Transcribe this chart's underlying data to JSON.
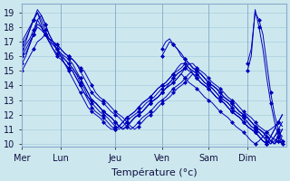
{
  "background_color": "#cce8ee",
  "grid_color": "#aaccdd",
  "line_color": "#0000bb",
  "marker": "D",
  "marker_size": 2.5,
  "xlabel": "Température (°c)",
  "ylim": [
    9.8,
    19.6
  ],
  "yticks": [
    10,
    11,
    12,
    13,
    14,
    15,
    16,
    17,
    18,
    19
  ],
  "day_labels": [
    "Mer",
    "Lun",
    "Jeu",
    "Ven",
    "Sam",
    "Dim"
  ],
  "day_positions": [
    0,
    20,
    48,
    72,
    96,
    116
  ],
  "xlim": [
    0,
    136
  ],
  "series": [
    {
      "x": [
        0,
        2,
        4,
        6,
        8,
        10,
        12,
        14,
        16,
        18,
        20,
        22,
        24,
        26,
        28,
        30,
        32,
        34,
        36,
        38,
        40,
        42,
        44,
        46,
        48,
        50,
        52,
        54,
        56,
        58,
        60,
        62,
        64,
        66,
        68,
        70,
        72,
        74,
        76,
        78,
        80,
        82,
        84,
        86,
        88,
        90,
        92,
        94,
        96,
        98,
        100,
        102,
        104,
        106,
        108,
        110,
        112,
        114,
        116,
        118,
        120,
        122,
        124,
        126,
        128,
        130,
        132,
        134
      ],
      "y": [
        16.0,
        16.2,
        16.8,
        17.5,
        18.5,
        18.8,
        18.2,
        17.5,
        17.0,
        16.5,
        16.0,
        15.5,
        15.2,
        15.0,
        14.5,
        14.0,
        13.5,
        13.2,
        13.0,
        12.8,
        12.5,
        12.2,
        12.0,
        11.8,
        11.5,
        11.2,
        11.0,
        11.2,
        11.5,
        11.8,
        12.0,
        12.2,
        12.5,
        12.8,
        13.0,
        13.2,
        13.5,
        13.8,
        14.2,
        14.5,
        14.8,
        15.0,
        15.2,
        15.5,
        15.5,
        15.2,
        15.0,
        14.8,
        14.5,
        14.2,
        14.0,
        13.8,
        13.5,
        13.2,
        13.0,
        12.8,
        12.5,
        12.2,
        12.0,
        11.8,
        11.5,
        11.2,
        11.0,
        10.8,
        10.5,
        10.3,
        10.2,
        10.0
      ]
    },
    {
      "x": [
        0,
        2,
        4,
        6,
        8,
        10,
        12,
        14,
        16,
        18,
        20,
        22,
        24,
        26,
        28,
        30,
        32,
        34,
        36,
        38,
        40,
        42,
        44,
        46,
        48,
        50,
        52,
        54,
        56,
        58,
        60,
        62,
        64,
        66,
        68,
        70,
        72,
        74,
        76,
        78,
        80,
        82,
        84,
        86,
        88,
        90,
        92,
        94,
        96,
        98,
        100,
        102,
        104,
        106,
        108,
        110,
        112,
        114,
        116,
        118,
        120,
        122,
        124,
        126,
        128,
        130,
        132,
        134
      ],
      "y": [
        16.5,
        17.0,
        17.8,
        18.5,
        19.0,
        18.5,
        17.8,
        17.2,
        16.8,
        16.5,
        16.0,
        15.5,
        15.0,
        14.5,
        14.0,
        13.5,
        13.0,
        12.5,
        12.2,
        12.0,
        11.8,
        11.5,
        11.2,
        11.0,
        11.0,
        11.2,
        11.5,
        11.8,
        12.0,
        12.2,
        12.5,
        12.8,
        13.0,
        13.2,
        13.5,
        13.8,
        14.0,
        14.2,
        14.5,
        14.8,
        15.0,
        15.2,
        15.5,
        15.2,
        15.0,
        14.8,
        14.5,
        14.2,
        14.0,
        13.8,
        13.5,
        13.2,
        13.0,
        12.8,
        12.5,
        12.2,
        12.0,
        11.8,
        11.5,
        11.2,
        11.0,
        10.8,
        10.5,
        10.2,
        10.0,
        10.2,
        10.5,
        10.2
      ]
    },
    {
      "x": [
        0,
        2,
        4,
        6,
        8,
        10,
        12,
        14,
        16,
        18,
        20,
        22,
        24,
        26,
        28,
        30,
        32,
        34,
        36,
        38,
        40,
        42,
        44,
        46,
        48,
        50,
        52,
        54,
        56,
        58,
        60,
        62,
        64,
        66,
        68,
        70,
        72,
        74,
        76,
        78,
        80,
        82,
        84,
        86,
        88,
        90,
        92,
        94,
        96,
        98,
        100,
        102,
        104,
        106,
        108,
        110,
        112,
        114,
        116,
        118,
        120,
        122,
        124,
        126,
        128,
        130,
        132,
        134
      ],
      "y": [
        17.0,
        17.5,
        18.0,
        18.5,
        19.0,
        18.2,
        17.5,
        17.0,
        16.5,
        16.0,
        15.8,
        15.5,
        15.2,
        15.0,
        14.5,
        14.0,
        13.5,
        13.0,
        12.5,
        12.2,
        12.0,
        11.8,
        11.5,
        11.2,
        11.0,
        11.2,
        11.5,
        11.8,
        12.0,
        12.2,
        12.5,
        12.8,
        13.0,
        13.2,
        13.5,
        13.8,
        14.0,
        14.2,
        14.5,
        14.8,
        15.2,
        15.5,
        15.5,
        15.2,
        14.8,
        14.5,
        14.2,
        14.0,
        13.8,
        13.5,
        13.2,
        13.0,
        12.8,
        12.5,
        12.2,
        12.0,
        11.8,
        11.5,
        11.2,
        11.0,
        10.8,
        10.5,
        10.2,
        10.0,
        10.2,
        10.5,
        10.8,
        10.5
      ]
    },
    {
      "x": [
        0,
        2,
        4,
        6,
        8,
        10,
        12,
        14,
        16,
        18,
        20,
        22,
        24,
        26,
        28,
        30,
        32,
        34,
        36,
        38,
        40,
        42,
        44,
        46,
        48,
        50,
        52,
        54,
        56,
        58,
        60,
        62,
        64,
        66,
        68,
        70,
        72,
        74,
        76,
        78,
        80,
        82,
        84,
        86,
        88,
        90,
        92,
        94,
        96,
        98,
        100,
        102,
        104,
        106,
        108,
        110,
        112,
        114,
        116,
        118,
        120,
        122,
        124,
        126,
        128,
        130,
        132,
        134
      ],
      "y": [
        15.5,
        16.0,
        16.8,
        17.5,
        18.2,
        18.0,
        17.5,
        17.0,
        16.5,
        16.2,
        16.0,
        15.8,
        15.5,
        15.2,
        14.8,
        14.5,
        14.0,
        13.5,
        13.0,
        12.8,
        12.5,
        12.2,
        12.0,
        11.8,
        11.5,
        11.2,
        11.0,
        11.2,
        11.5,
        11.8,
        12.0,
        12.2,
        12.5,
        12.8,
        13.0,
        13.2,
        13.5,
        13.8,
        14.0,
        14.2,
        14.5,
        14.8,
        14.5,
        14.2,
        14.0,
        13.8,
        13.5,
        13.2,
        13.0,
        12.8,
        12.5,
        12.2,
        12.0,
        11.8,
        11.5,
        11.2,
        11.0,
        10.8,
        10.5,
        10.2,
        10.0,
        10.2,
        10.5,
        10.8,
        11.0,
        11.2,
        11.5,
        11.2
      ]
    },
    {
      "x": [
        0,
        2,
        4,
        6,
        8,
        10,
        12,
        14,
        16,
        18,
        20,
        22,
        24,
        26,
        28,
        30,
        32,
        34,
        36,
        38,
        40,
        42,
        44,
        46,
        48,
        50,
        52,
        54,
        56,
        58,
        60,
        62,
        64,
        66,
        68,
        70,
        72,
        74,
        76,
        78,
        80,
        82,
        84,
        86,
        88,
        90,
        92,
        94,
        96,
        98,
        100,
        102,
        104,
        106,
        108,
        110,
        112,
        114,
        116,
        118,
        120,
        122,
        124,
        126,
        128,
        130,
        132,
        134
      ],
      "y": [
        16.0,
        16.5,
        17.0,
        17.5,
        18.0,
        17.8,
        17.5,
        17.2,
        17.0,
        16.8,
        16.5,
        16.2,
        16.0,
        15.8,
        15.5,
        15.0,
        14.5,
        14.0,
        13.5,
        13.2,
        13.0,
        12.8,
        12.5,
        12.2,
        12.0,
        11.8,
        11.5,
        11.2,
        11.0,
        11.2,
        11.5,
        11.8,
        12.0,
        12.2,
        12.5,
        12.8,
        13.0,
        13.2,
        13.5,
        13.8,
        14.0,
        14.2,
        14.5,
        14.8,
        15.0,
        14.8,
        14.5,
        14.2,
        14.0,
        13.8,
        13.5,
        13.2,
        13.0,
        12.8,
        12.5,
        12.2,
        12.0,
        11.8,
        11.5,
        11.2,
        11.0,
        10.8,
        10.5,
        10.2,
        10.0,
        10.5,
        11.0,
        11.5
      ]
    },
    {
      "x": [
        0,
        2,
        4,
        6,
        8,
        10,
        12,
        14,
        16,
        18,
        20,
        22,
        24,
        26,
        28,
        30,
        32,
        34,
        36,
        38,
        40,
        42,
        44,
        46,
        48,
        50,
        52,
        54,
        56,
        58,
        60,
        62,
        64,
        66,
        68,
        70,
        72,
        74,
        76,
        78,
        80,
        82,
        84,
        86,
        88,
        90,
        92,
        94,
        96,
        98,
        100,
        102,
        104,
        106,
        108,
        110,
        112,
        114,
        116,
        118,
        120,
        122,
        124,
        126,
        128,
        130,
        132,
        134
      ],
      "y": [
        15.0,
        15.5,
        16.0,
        16.5,
        17.0,
        17.2,
        17.5,
        17.2,
        17.0,
        16.8,
        16.5,
        16.2,
        16.0,
        15.8,
        15.5,
        15.2,
        15.0,
        14.5,
        14.0,
        13.5,
        13.2,
        13.0,
        12.8,
        12.5,
        12.2,
        12.0,
        11.8,
        11.5,
        11.2,
        11.0,
        11.2,
        11.5,
        11.8,
        12.0,
        12.2,
        12.5,
        12.8,
        13.0,
        13.2,
        13.5,
        13.8,
        14.0,
        14.2,
        14.5,
        14.8,
        14.5,
        14.2,
        14.0,
        13.8,
        13.5,
        13.2,
        13.0,
        12.8,
        12.5,
        12.2,
        12.0,
        11.8,
        11.5,
        11.2,
        11.0,
        10.8,
        10.5,
        10.2,
        10.0,
        10.5,
        11.0,
        11.5,
        12.0
      ]
    },
    {
      "x": [
        0,
        2,
        4,
        6,
        8,
        10,
        12,
        14,
        16,
        18,
        20,
        22,
        24,
        26,
        28,
        30,
        32,
        34,
        36,
        38,
        40,
        42,
        44,
        46,
        48,
        50,
        52,
        54,
        56,
        58,
        60,
        62,
        64,
        66,
        68,
        70,
        72,
        74,
        76,
        78,
        80,
        82,
        84,
        86,
        88,
        90,
        92,
        94,
        96,
        98,
        100,
        102,
        104,
        106,
        108,
        110,
        112,
        114,
        116,
        118,
        120,
        122,
        124,
        126,
        128,
        130,
        132,
        134
      ],
      "y": [
        16.2,
        16.8,
        17.2,
        17.8,
        18.5,
        18.0,
        17.5,
        17.0,
        16.8,
        16.5,
        16.2,
        16.0,
        15.8,
        15.5,
        15.0,
        14.5,
        14.0,
        13.5,
        13.0,
        12.8,
        12.5,
        12.2,
        12.0,
        11.8,
        11.5,
        11.2,
        11.0,
        11.2,
        11.5,
        11.8,
        12.0,
        12.2,
        12.5,
        12.8,
        13.0,
        13.2,
        13.5,
        13.8,
        14.0,
        14.2,
        14.5,
        14.8,
        15.2,
        15.0,
        14.8,
        14.5,
        14.2,
        14.0,
        13.8,
        13.5,
        13.2,
        13.0,
        12.8,
        12.5,
        12.2,
        12.0,
        11.8,
        11.5,
        11.2,
        11.0,
        10.8,
        10.5,
        10.2,
        10.0,
        10.5,
        11.0,
        11.5,
        12.0
      ]
    },
    {
      "x": [
        0,
        2,
        4,
        6,
        8,
        10,
        12,
        14,
        16,
        18,
        20,
        22,
        24,
        26,
        28,
        30,
        32,
        34,
        36,
        38,
        40,
        42,
        44,
        46,
        48,
        50,
        52,
        54,
        56,
        58,
        60,
        62,
        64,
        66,
        68,
        70,
        72,
        74,
        76,
        78,
        80,
        82,
        84,
        86,
        88,
        90,
        92,
        94,
        96,
        98,
        100,
        102,
        104,
        106,
        108,
        110,
        112,
        114,
        116,
        118,
        120,
        122,
        124,
        126,
        128,
        130,
        132,
        134
      ],
      "y": [
        16.8,
        17.2,
        17.8,
        18.5,
        19.2,
        18.8,
        18.2,
        17.5,
        17.0,
        16.5,
        16.2,
        15.8,
        15.5,
        15.2,
        14.8,
        14.2,
        13.8,
        13.2,
        12.8,
        12.5,
        12.2,
        12.0,
        11.8,
        11.5,
        11.2,
        11.0,
        11.2,
        11.5,
        11.8,
        12.0,
        12.2,
        12.5,
        12.8,
        13.0,
        13.2,
        13.5,
        13.8,
        14.0,
        14.2,
        14.5,
        14.8,
        15.0,
        15.2,
        15.5,
        15.2,
        15.0,
        14.8,
        14.5,
        14.2,
        14.0,
        13.8,
        13.5,
        13.2,
        13.0,
        12.8,
        12.5,
        12.2,
        12.0,
        11.8,
        11.5,
        11.2,
        11.0,
        10.8,
        10.5,
        10.2,
        10.0,
        10.2,
        10.0
      ]
    },
    {
      "x": [
        72,
        74,
        76,
        78,
        80,
        82,
        84,
        86,
        88,
        90,
        92,
        94,
        96,
        98,
        100,
        102,
        104,
        106,
        108,
        110,
        112,
        114,
        116,
        118,
        120,
        122,
        124,
        126,
        128,
        130,
        132,
        134
      ],
      "y": [
        16.5,
        17.0,
        17.2,
        16.8,
        16.5,
        16.0,
        15.8,
        15.5,
        15.2,
        15.0,
        14.8,
        14.5,
        14.2,
        14.0,
        13.8,
        13.5,
        13.2,
        13.0,
        12.8,
        12.5,
        12.2,
        12.0,
        11.8,
        11.5,
        11.2,
        11.0,
        10.8,
        10.5,
        10.2,
        10.0,
        10.5,
        11.0
      ]
    },
    {
      "x": [
        72,
        74,
        76,
        78,
        80,
        82,
        84,
        86,
        88,
        90,
        92,
        94,
        96,
        98,
        100,
        102,
        104,
        106,
        108,
        110,
        112,
        114,
        116,
        118,
        120,
        122,
        124,
        126,
        128,
        130,
        132,
        134
      ],
      "y": [
        16.0,
        16.5,
        17.0,
        16.8,
        16.5,
        16.2,
        15.8,
        15.5,
        15.2,
        15.0,
        14.8,
        14.5,
        14.2,
        14.0,
        13.8,
        13.5,
        13.2,
        13.0,
        12.8,
        12.5,
        12.2,
        12.0,
        11.8,
        11.5,
        11.2,
        11.0,
        10.8,
        10.5,
        10.2,
        10.0,
        10.5,
        11.0
      ]
    },
    {
      "x": [
        116,
        118,
        120,
        122,
        124,
        126,
        128,
        130,
        132,
        134
      ],
      "y": [
        15.5,
        16.5,
        19.0,
        18.5,
        17.5,
        15.5,
        13.5,
        12.0,
        11.0,
        10.2
      ]
    },
    {
      "x": [
        116,
        118,
        120,
        122,
        124,
        126,
        128,
        130,
        132,
        134
      ],
      "y": [
        15.0,
        16.0,
        19.2,
        18.0,
        16.5,
        14.5,
        12.8,
        11.5,
        10.5,
        10.0
      ]
    }
  ]
}
